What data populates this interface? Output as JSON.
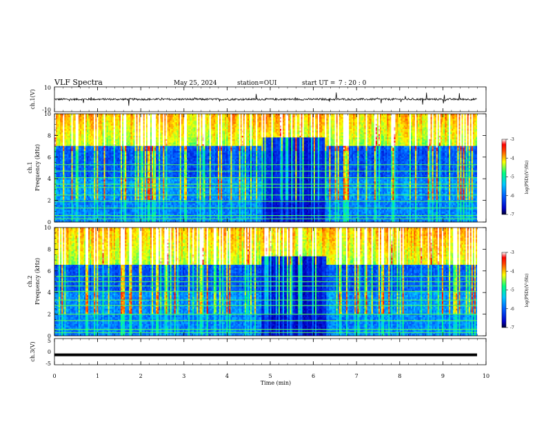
{
  "header": {
    "title": "VLF Spectra",
    "date": "May 25, 2024",
    "station": "station=OUI",
    "start_label": "start  UT  =",
    "start_time": "7 : 20 : 0"
  },
  "colors": {
    "colormap": [
      "#000033",
      "#0000c8",
      "#0060ff",
      "#00c8ff",
      "#00ff80",
      "#ffff00",
      "#ff4000",
      "#ff0000",
      "#ffffff"
    ],
    "axis": "#000000",
    "background": "#ffffff"
  },
  "chart_data": [
    {
      "type": "line",
      "name": "ch1-waveform",
      "ylabel": "ch.1(V)",
      "ylim": [
        -10,
        10
      ],
      "yticks": [
        "10",
        "-10"
      ],
      "baseline": 0,
      "description_values": {
        "typical_amplitude_v": 1.5,
        "spike_amplitude_v": 5
      }
    },
    {
      "type": "heatmap",
      "name": "ch1-spectrogram",
      "ylabel": "ch.1",
      "ylabel2": "Frequency (kHz)",
      "ylim": [
        0,
        10
      ],
      "yticks": [
        "0",
        "2",
        "4",
        "6",
        "8",
        "10"
      ],
      "xlim": [
        0,
        9.8
      ],
      "z_range": [
        -7,
        -3
      ],
      "colorbar_label": "log(PSD)(V²/Hz)",
      "colorbar_ticks": [
        "-3",
        "-4",
        "-5",
        "-6",
        "-7"
      ],
      "quiet_band_khz": [
        4,
        7
      ],
      "dark_gap_min": [
        4.8,
        6.3
      ],
      "horizontal_lines_khz": [
        0.3,
        0.6,
        1.3,
        1.9,
        2.5,
        3.2,
        3.5,
        4.1,
        4.7,
        5.3
      ]
    },
    {
      "type": "heatmap",
      "name": "ch2-spectrogram",
      "ylabel": "ch.2",
      "ylabel2": "Frequency (kHz)",
      "ylim": [
        0,
        10
      ],
      "yticks": [
        "0",
        "2",
        "4",
        "6",
        "8",
        "10"
      ],
      "xlim": [
        0,
        9.8
      ],
      "z_range": [
        -7,
        -3
      ],
      "colorbar_label": "log(PSD)(V²/Hz)",
      "colorbar_ticks": [
        "-3",
        "-4",
        "-5",
        "-6",
        "-7"
      ],
      "quiet_band_khz": [
        4,
        6.5
      ],
      "dark_gap_min": [
        4.8,
        6.3
      ],
      "horizontal_lines_khz": [
        0.3,
        0.6,
        1.4,
        2.0,
        2.8,
        3.3,
        4.1,
        4.6,
        5.0,
        5.5
      ]
    },
    {
      "type": "line",
      "name": "ch3-waveform",
      "ylabel": "ch.3(V)",
      "ylim": [
        -5,
        5
      ],
      "yticks": [
        "5",
        "0",
        "-5"
      ],
      "value": -1.2
    }
  ],
  "xaxis": {
    "label": "Time (min)",
    "range": [
      0,
      10
    ],
    "ticks": [
      "0",
      "1",
      "2",
      "3",
      "4",
      "5",
      "6",
      "7",
      "8",
      "9",
      "10"
    ]
  }
}
